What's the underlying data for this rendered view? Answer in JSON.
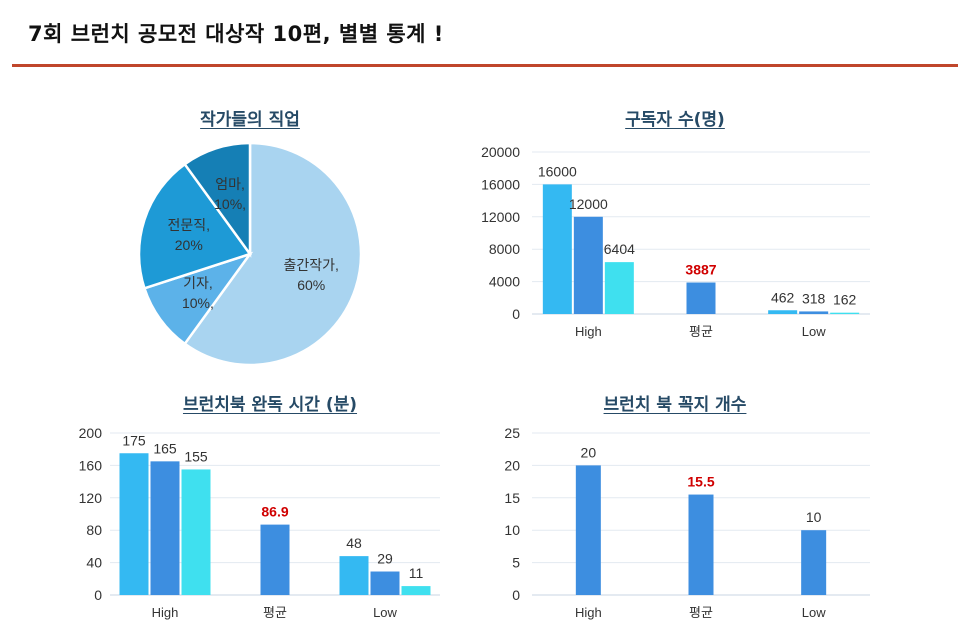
{
  "page": {
    "title": "7회 브런치 공모전 대상작 10편, 별별 통계 !"
  },
  "colors": {
    "rule": "#c0462b",
    "title_text": "#264a66",
    "highlight": "#d00000"
  },
  "chart_data": [
    {
      "id": "job",
      "type": "pie",
      "title": "작가들의 직업",
      "slices": [
        {
          "label": "출간작가,",
          "value": 60,
          "value_label": "60%",
          "color": "#a9d4f0"
        },
        {
          "label": "기자,",
          "value": 10,
          "value_label": "10%,",
          "color": "#5cb2e9"
        },
        {
          "label": "전문직,",
          "value": 20,
          "value_label": "20%",
          "color": "#1e9ad6"
        },
        {
          "label": "엄마,",
          "value": 10,
          "value_label": "10%,",
          "color": "#157fb5"
        }
      ]
    },
    {
      "id": "subscribers",
      "type": "bar",
      "title": "구독자 수(명)",
      "categories": [
        "High",
        "평균",
        "Low"
      ],
      "ylim": [
        0,
        20000
      ],
      "yticks": [
        "0",
        "4000",
        "8000",
        "12000",
        "16000",
        "20000"
      ],
      "groups": [
        {
          "category": "High",
          "bars": [
            {
              "value": 16000,
              "label": "16000",
              "color": "#34b9f2"
            },
            {
              "value": 12000,
              "label": "12000",
              "color": "#3d8ee0"
            },
            {
              "value": 6404,
              "label": "6404",
              "color": "#3fe0ef"
            }
          ]
        },
        {
          "category": "평균",
          "bars": [
            {
              "value": 3887,
              "label": "3887",
              "color": "#3d8ee0",
              "highlight": true
            }
          ]
        },
        {
          "category": "Low",
          "bars": [
            {
              "value": 462,
              "label": "462",
              "color": "#34b9f2"
            },
            {
              "value": 318,
              "label": "318",
              "color": "#3d8ee0"
            },
            {
              "value": 162,
              "label": "162",
              "color": "#3fe0ef"
            }
          ]
        }
      ]
    },
    {
      "id": "read-time",
      "type": "bar",
      "title": "브런치북 완독 시간 (분)",
      "categories": [
        "High",
        "평균",
        "Low"
      ],
      "ylim": [
        0,
        200
      ],
      "yticks": [
        "0",
        "40",
        "80",
        "120",
        "160",
        "200"
      ],
      "groups": [
        {
          "category": "High",
          "bars": [
            {
              "value": 175,
              "label": "175",
              "color": "#34b9f2"
            },
            {
              "value": 165,
              "label": "165",
              "color": "#3d8ee0"
            },
            {
              "value": 155,
              "label": "155",
              "color": "#3fe0ef"
            }
          ]
        },
        {
          "category": "평균",
          "bars": [
            {
              "value": 86.9,
              "label": "86.9",
              "color": "#3d8ee0",
              "highlight": true
            }
          ]
        },
        {
          "category": "Low",
          "bars": [
            {
              "value": 48,
              "label": "48",
              "color": "#34b9f2"
            },
            {
              "value": 29,
              "label": "29",
              "color": "#3d8ee0"
            },
            {
              "value": 11,
              "label": "11",
              "color": "#3fe0ef"
            }
          ]
        }
      ]
    },
    {
      "id": "chapters",
      "type": "bar",
      "title": "브런치 북 꼭지 개수",
      "categories": [
        "High",
        "평균",
        "Low"
      ],
      "ylim": [
        0,
        25
      ],
      "yticks": [
        "0",
        "5",
        "10",
        "15",
        "20",
        "25"
      ],
      "groups": [
        {
          "category": "High",
          "bars": [
            {
              "value": 20,
              "label": "20",
              "color": "#3d8ee0"
            }
          ]
        },
        {
          "category": "평균",
          "bars": [
            {
              "value": 15.5,
              "label": "15.5",
              "color": "#3d8ee0",
              "highlight": true
            }
          ]
        },
        {
          "category": "Low",
          "bars": [
            {
              "value": 10,
              "label": "10",
              "color": "#3d8ee0"
            }
          ]
        }
      ]
    }
  ]
}
